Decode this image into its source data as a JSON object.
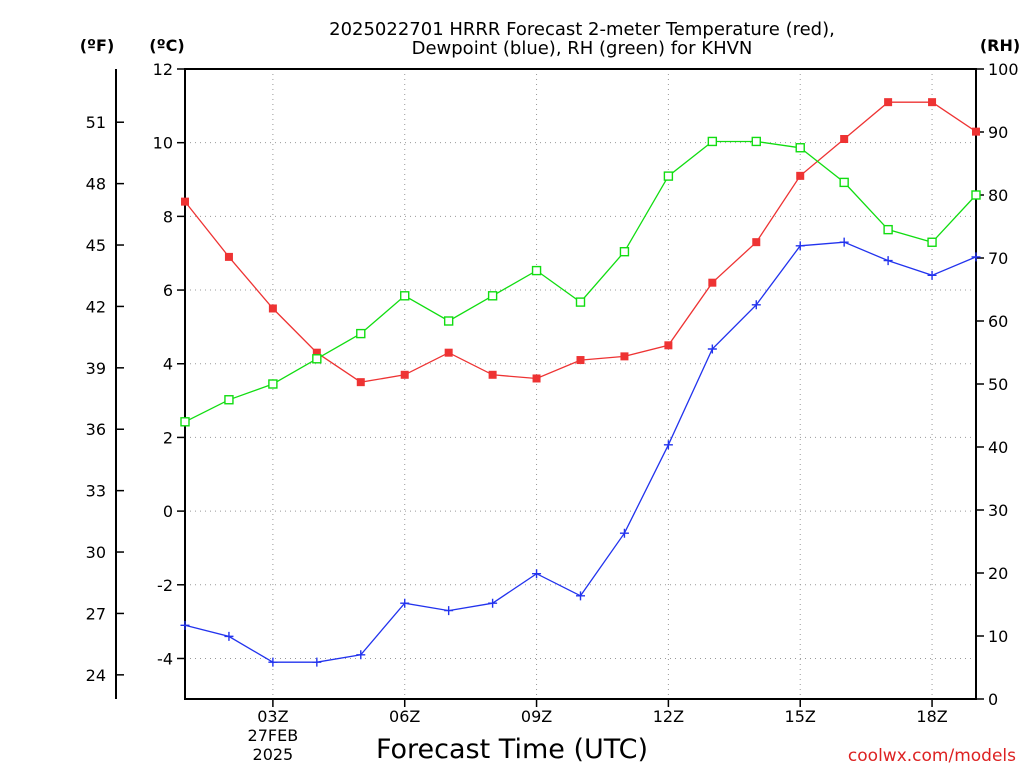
{
  "chart_data": {
    "type": "line",
    "title_lines": [
      "2025022701 HRRR Forecast 2-meter Temperature (red),",
      "Dewpoint (blue), RH (green) for KHVN"
    ],
    "xlabel": "Forecast Time (UTC)",
    "unit_labels": {
      "left_outer": "(ºF)",
      "left": "(ºC)",
      "right": "(RH)"
    },
    "watermark": "coolwx.com/models",
    "x_hours": [
      1,
      2,
      3,
      4,
      5,
      6,
      7,
      8,
      9,
      10,
      11,
      12,
      13,
      14,
      15,
      16,
      17,
      18,
      19
    ],
    "xlim": [
      1,
      19
    ],
    "x_ticks": [
      {
        "hour": 3,
        "label": "03Z",
        "sub": [
          "27FEB",
          "2025"
        ]
      },
      {
        "hour": 6,
        "label": "06Z"
      },
      {
        "hour": 9,
        "label": "09Z"
      },
      {
        "hour": 12,
        "label": "12Z"
      },
      {
        "hour": 15,
        "label": "15Z"
      },
      {
        "hour": 18,
        "label": "18Z"
      }
    ],
    "ylim_c": [
      -5.1,
      12
    ],
    "y_ticks_c": [
      "-4",
      "-2",
      "0",
      "2",
      "4",
      "6",
      "8",
      "10",
      "12"
    ],
    "y_ticks_f": [
      "24",
      "27",
      "30",
      "33",
      "36",
      "39",
      "42",
      "45",
      "48",
      "51"
    ],
    "ylim_rh": [
      0,
      100
    ],
    "y_ticks_rh": [
      "0",
      "10",
      "20",
      "30",
      "40",
      "50",
      "60",
      "70",
      "80",
      "90",
      "100"
    ],
    "grid": true,
    "series": [
      {
        "name": "Temperature",
        "axis": "c",
        "color": "#ee3333",
        "marker": "filled-square",
        "values": [
          8.4,
          6.9,
          5.5,
          4.3,
          3.5,
          3.7,
          4.3,
          3.7,
          3.6,
          4.1,
          4.2,
          4.5,
          6.2,
          7.3,
          9.1,
          10.1,
          11.1,
          11.1,
          10.3
        ]
      },
      {
        "name": "Dewpoint",
        "axis": "c",
        "color": "#2233ee",
        "marker": "plus",
        "values": [
          -3.1,
          -3.4,
          -4.1,
          -4.1,
          -3.9,
          -2.5,
          -2.7,
          -2.5,
          -1.7,
          -2.3,
          -0.6,
          1.8,
          4.4,
          5.6,
          7.2,
          7.3,
          6.8,
          6.4,
          6.9
        ]
      },
      {
        "name": "RH",
        "axis": "rh",
        "color": "#11dd11",
        "marker": "open-square",
        "values": [
          44,
          47.5,
          50,
          54,
          58,
          64,
          60,
          64,
          68,
          63,
          71,
          83,
          88.5,
          88.5,
          87.5,
          82,
          74.5,
          72.5,
          80
        ]
      }
    ]
  }
}
